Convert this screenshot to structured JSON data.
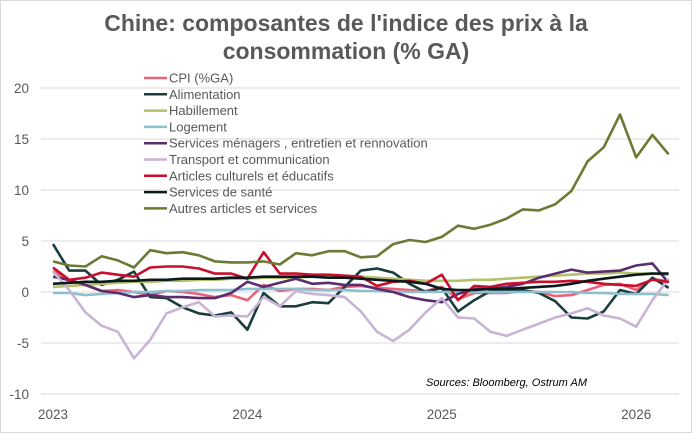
{
  "chart_data": {
    "type": "line",
    "title_line1": "Chine: composantes de l'indice des prix à la",
    "title_line2": "consommation (% GA)",
    "source": "Sources: Bloomberg, Ostrum AM",
    "x_start": "2023-01",
    "x_frequency": "monthly",
    "x_ticks": [
      "2023",
      "2024",
      "2025",
      "2026"
    ],
    "y_ticks": [
      20,
      15,
      10,
      5,
      0,
      -5,
      -10
    ],
    "ylim": [
      -10,
      20
    ],
    "grid": "horizontal",
    "legend_position": "top-left",
    "series": [
      {
        "name": "CPI (%GA)",
        "color": "#e8647a",
        "values": [
          2.1,
          1.0,
          0.7,
          0.1,
          0.2,
          0.0,
          -0.3,
          0.1,
          0.0,
          -0.2,
          -0.5,
          -0.3,
          -0.8,
          0.7,
          0.1,
          0.3,
          0.3,
          0.2,
          0.5,
          0.6,
          0.4,
          0.3,
          0.2,
          0.1,
          0.5,
          -0.7,
          -0.1,
          -0.1,
          -0.1,
          0.1,
          0.0,
          -0.4,
          -0.3,
          0.2,
          0.7,
          0.8,
          0.2,
          1.3,
          1.0
        ]
      },
      {
        "name": "Alimentation",
        "color": "#1a3d3d",
        "values": [
          4.7,
          2.1,
          2.1,
          0.7,
          1.2,
          2.0,
          -0.5,
          -0.6,
          -1.5,
          -2.1,
          -2.3,
          -2.0,
          -3.7,
          -0.1,
          -1.4,
          -1.4,
          -1.0,
          -1.1,
          0.5,
          2.1,
          2.3,
          1.9,
          0.8,
          0.0,
          0.4,
          -1.9,
          -0.8,
          0.1,
          0.2,
          0.2,
          -0.1,
          -0.9,
          -2.5,
          -2.6,
          -1.9,
          0.2,
          -0.2,
          1.4,
          0.4
        ]
      },
      {
        "name": "Habillement",
        "color": "#b5c06a",
        "values": [
          0.5,
          0.6,
          0.7,
          0.8,
          0.9,
          1.0,
          1.0,
          1.1,
          1.1,
          1.2,
          1.2,
          1.3,
          1.3,
          1.4,
          1.4,
          1.4,
          1.5,
          1.5,
          1.5,
          1.5,
          1.4,
          1.3,
          1.2,
          1.1,
          1.1,
          1.1,
          1.2,
          1.2,
          1.3,
          1.4,
          1.5,
          1.6,
          1.7,
          1.8,
          1.8,
          1.9,
          1.8,
          1.8,
          1.7
        ]
      },
      {
        "name": "Logement",
        "color": "#8cbfd0",
        "values": [
          -0.1,
          -0.1,
          -0.3,
          -0.2,
          -0.1,
          0.0,
          0.0,
          0.1,
          0.1,
          0.2,
          0.2,
          0.2,
          0.3,
          0.3,
          0.3,
          0.3,
          0.2,
          0.2,
          0.2,
          0.1,
          0.1,
          0.0,
          0.0,
          0.0,
          0.0,
          0.0,
          0.0,
          0.0,
          0.0,
          0.0,
          0.0,
          0.0,
          0.0,
          -0.1,
          -0.1,
          -0.2,
          -0.2,
          -0.2,
          -0.3
        ]
      },
      {
        "name": "Services ménagers , entretien et rennovation",
        "color": "#5a2d6e",
        "values": [
          1.5,
          1.2,
          0.7,
          0.1,
          -0.1,
          -0.5,
          -0.3,
          -0.5,
          -0.5,
          -0.6,
          -0.6,
          -0.1,
          1.0,
          0.5,
          0.9,
          1.3,
          0.8,
          0.9,
          0.7,
          0.7,
          0.3,
          0.0,
          -0.5,
          -0.8,
          -1.0,
          -0.2,
          0.3,
          0.3,
          0.5,
          0.8,
          1.4,
          1.8,
          2.2,
          1.9,
          2.0,
          2.1,
          2.6,
          2.8,
          0.9
        ]
      },
      {
        "name": "Transport et communication",
        "color": "#c8b4d4",
        "values": [
          2.0,
          0.2,
          -2.0,
          -3.3,
          -3.9,
          -6.5,
          -4.7,
          -2.1,
          -1.5,
          -1.0,
          -2.4,
          -2.3,
          -2.4,
          -0.5,
          -1.4,
          0.1,
          -0.2,
          -0.3,
          -0.5,
          -1.9,
          -3.9,
          -4.8,
          -3.7,
          -2.0,
          -0.6,
          -2.5,
          -2.6,
          -3.9,
          -4.3,
          -3.7,
          -3.1,
          -2.5,
          -2.1,
          -1.6,
          -2.3,
          -2.6,
          -3.4,
          -0.8,
          1.3
        ]
      },
      {
        "name": "Articles culturels et éducatifs",
        "color": "#c8102e",
        "values": [
          2.4,
          1.2,
          1.4,
          1.9,
          1.7,
          1.5,
          2.4,
          2.5,
          2.5,
          2.3,
          1.8,
          1.8,
          1.3,
          3.9,
          1.8,
          1.8,
          1.7,
          1.7,
          1.6,
          1.5,
          0.6,
          1.0,
          1.1,
          0.8,
          1.7,
          -0.8,
          0.6,
          0.5,
          0.8,
          0.9,
          1.0,
          1.0,
          1.1,
          1.0,
          0.8,
          0.7,
          0.6,
          1.2,
          1.0
        ]
      },
      {
        "name": "Services de santé",
        "color": "#0b1a1a",
        "values": [
          0.8,
          0.9,
          1.0,
          1.0,
          1.1,
          1.1,
          1.2,
          1.2,
          1.3,
          1.3,
          1.3,
          1.4,
          1.4,
          1.5,
          1.5,
          1.5,
          1.5,
          1.4,
          1.4,
          1.3,
          1.2,
          1.1,
          1.0,
          0.8,
          0.3,
          0.2,
          0.2,
          0.3,
          0.3,
          0.4,
          0.5,
          0.6,
          0.8,
          1.1,
          1.3,
          1.5,
          1.7,
          1.8,
          1.8
        ]
      },
      {
        "name": "Autres articles et services",
        "color": "#6b7a35",
        "values": [
          3.0,
          2.6,
          2.5,
          3.5,
          3.1,
          2.4,
          4.1,
          3.8,
          3.9,
          3.6,
          3.0,
          2.9,
          2.9,
          3.0,
          2.7,
          3.8,
          3.6,
          4.0,
          4.0,
          3.4,
          3.5,
          4.7,
          5.1,
          4.9,
          5.4,
          6.5,
          6.2,
          6.6,
          7.2,
          8.1,
          8.0,
          8.6,
          9.9,
          12.8,
          14.2,
          17.4,
          13.2,
          15.4,
          13.5
        ]
      }
    ]
  }
}
